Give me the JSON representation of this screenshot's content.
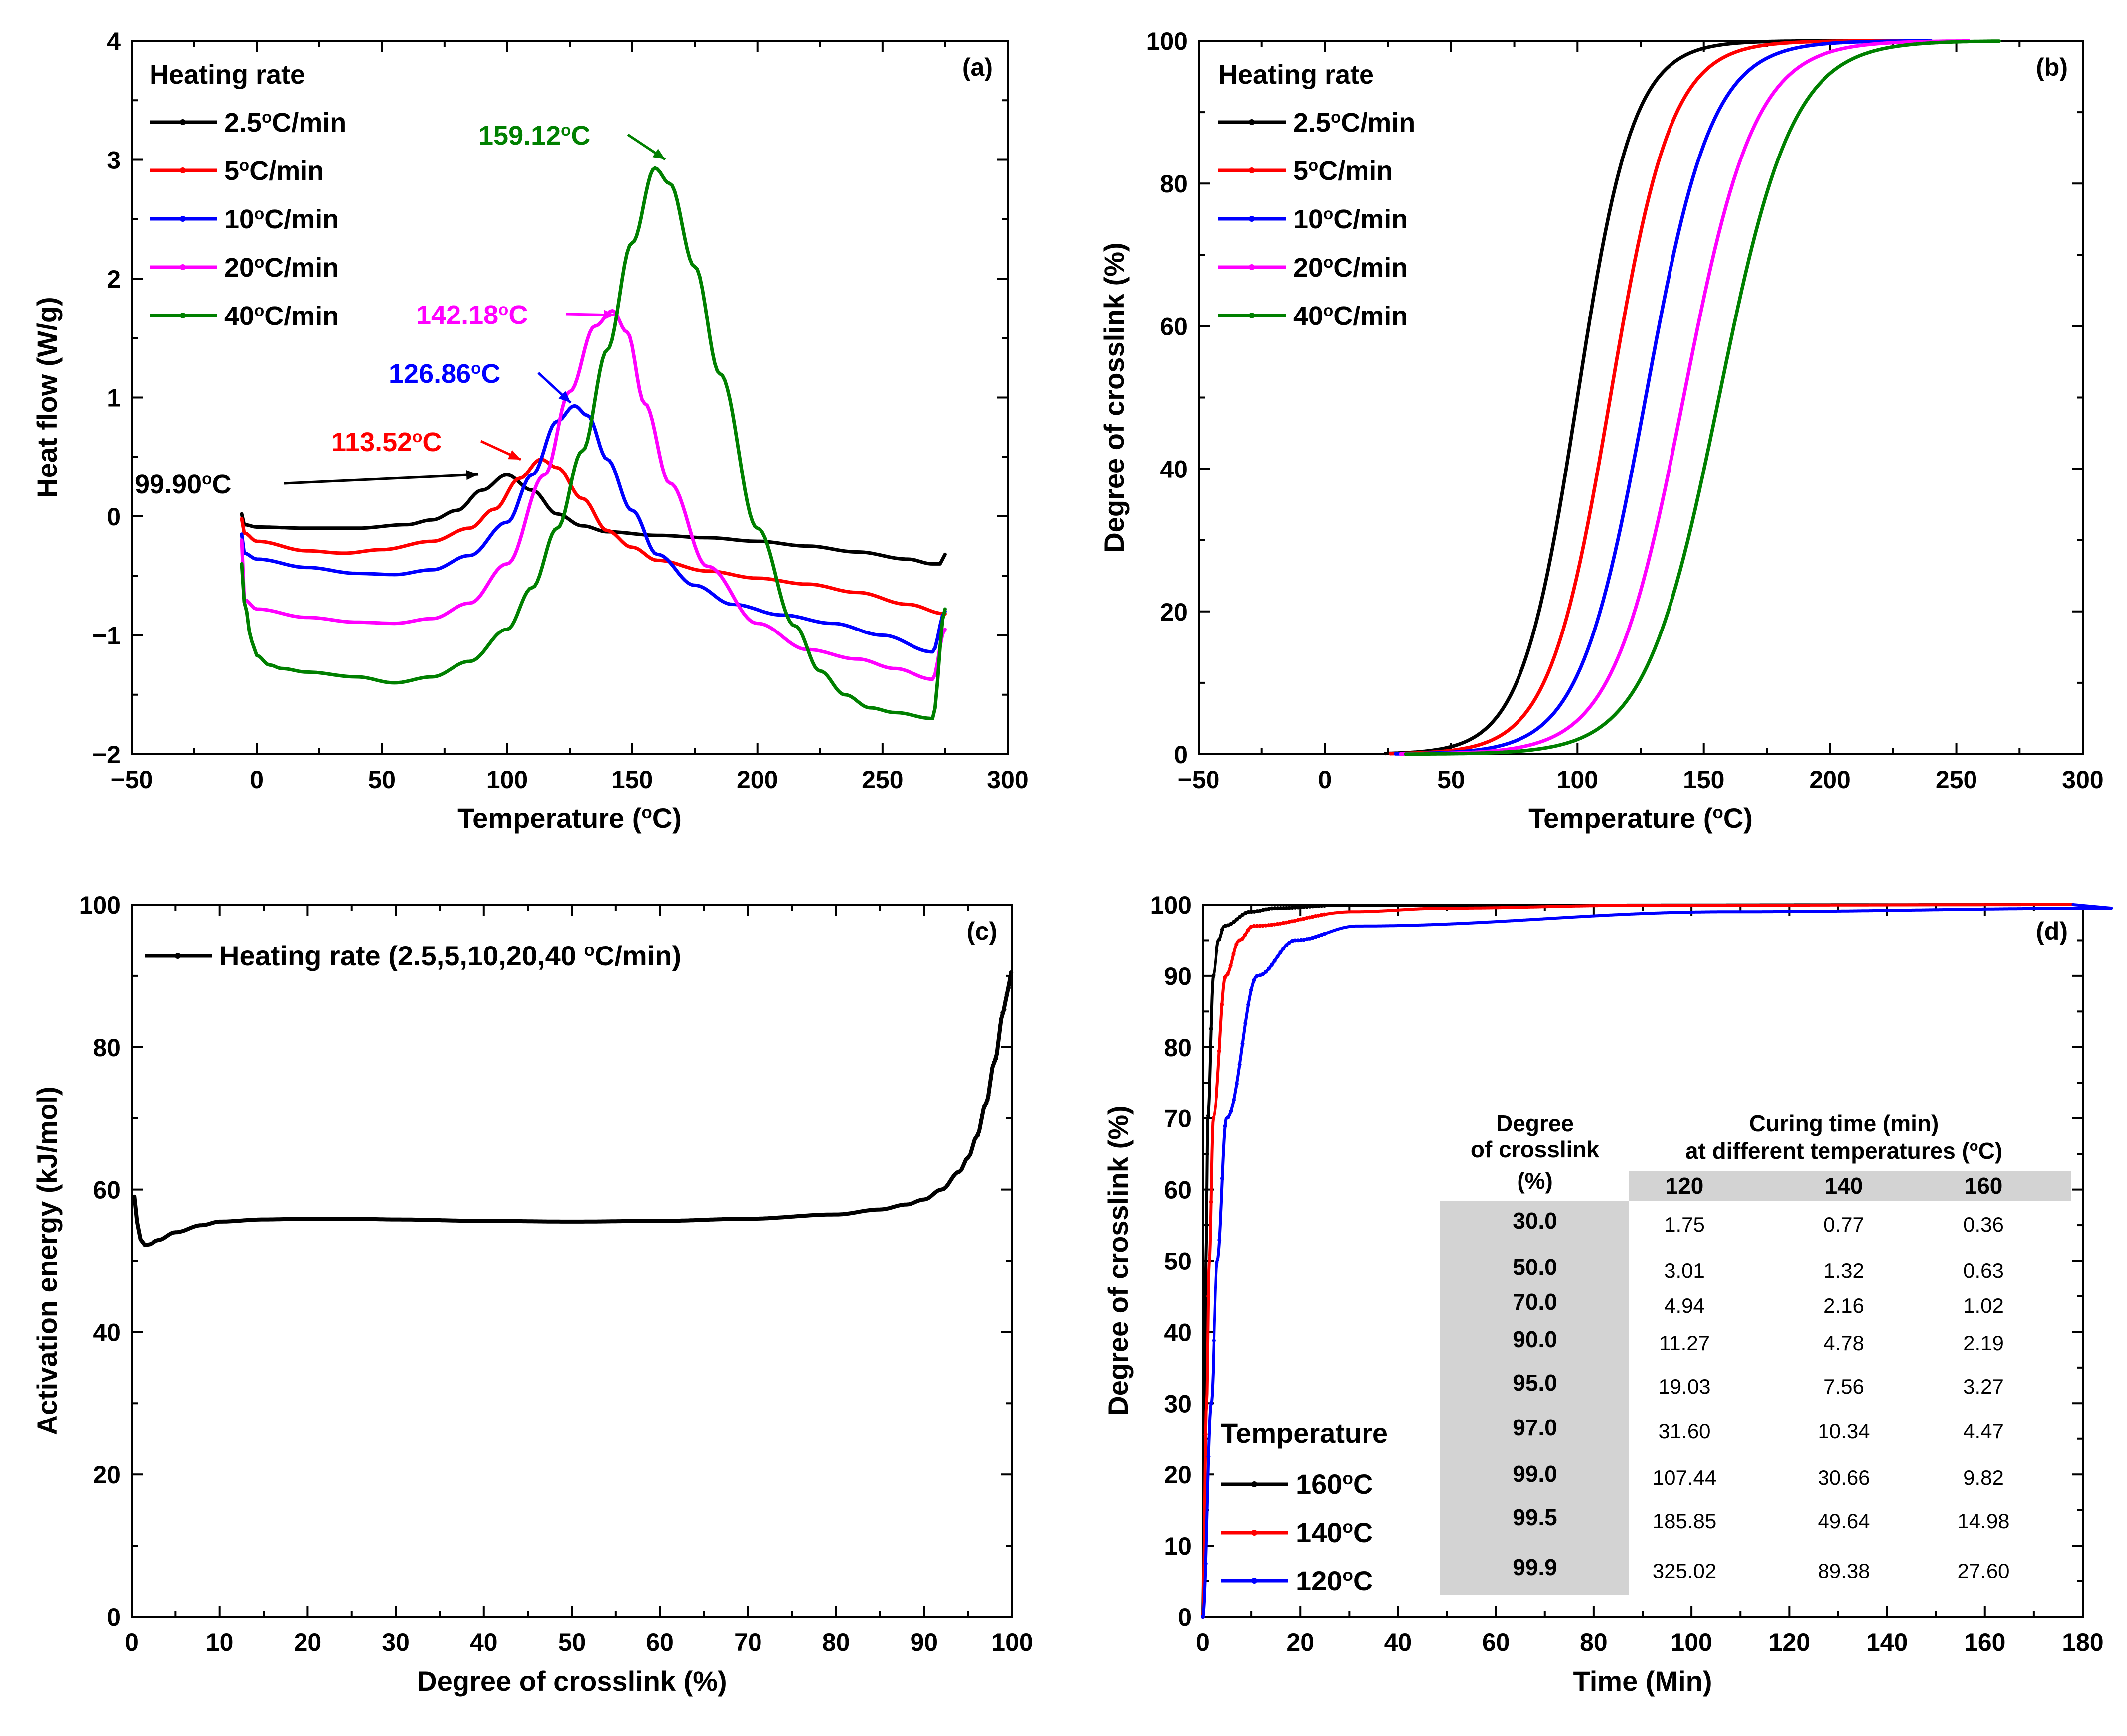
{
  "chart_data": [
    {
      "id": "a",
      "type": "line",
      "panel_label": "(a)",
      "xlabel": "Temperature (°C)",
      "ylabel": "Heat flow (W/g)",
      "xlim": [
        -50,
        300
      ],
      "ylim": [
        -2,
        4
      ],
      "xticks": [
        -50,
        0,
        50,
        100,
        150,
        200,
        250,
        300
      ],
      "yticks": [
        -2,
        -1,
        0,
        1,
        2,
        3,
        4
      ],
      "legend_title": "Heating rate",
      "legend_position": "top-left",
      "series": [
        {
          "name": "2.5°C/min",
          "color": "#000000",
          "x": [
            -6,
            -5,
            0,
            20,
            40,
            60,
            70,
            80,
            90,
            99.9,
            110,
            120,
            130,
            140,
            160,
            180,
            200,
            220,
            240,
            260,
            270,
            273,
            275
          ],
          "y": [
            0.02,
            -0.07,
            -0.09,
            -0.1,
            -0.1,
            -0.07,
            -0.03,
            0.05,
            0.22,
            0.35,
            0.22,
            0.02,
            -0.08,
            -0.13,
            -0.16,
            -0.18,
            -0.21,
            -0.25,
            -0.3,
            -0.36,
            -0.4,
            -0.4,
            -0.32
          ]
        },
        {
          "name": "5°C/min",
          "color": "#ff0000",
          "x": [
            -6,
            -5,
            0,
            20,
            35,
            50,
            70,
            85,
            95,
            105,
            113.5,
            120,
            130,
            140,
            150,
            160,
            180,
            200,
            220,
            240,
            260,
            275
          ],
          "y": [
            -0.02,
            -0.14,
            -0.21,
            -0.29,
            -0.31,
            -0.28,
            -0.21,
            -0.1,
            0.06,
            0.32,
            0.48,
            0.41,
            0.15,
            -0.12,
            -0.26,
            -0.37,
            -0.46,
            -0.52,
            -0.57,
            -0.64,
            -0.74,
            -0.82
          ]
        },
        {
          "name": "10°C/min",
          "color": "#0000ff",
          "x": [
            -6,
            -5,
            0,
            20,
            40,
            55,
            70,
            85,
            100,
            110,
            120,
            126.9,
            132,
            140,
            150,
            160,
            175,
            190,
            210,
            230,
            250,
            270,
            275
          ],
          "y": [
            -0.15,
            -0.31,
            -0.36,
            -0.43,
            -0.48,
            -0.49,
            -0.45,
            -0.33,
            -0.05,
            0.35,
            0.8,
            0.93,
            0.85,
            0.48,
            0.05,
            -0.32,
            -0.58,
            -0.74,
            -0.83,
            -0.9,
            -1.0,
            -1.14,
            -0.8
          ]
        },
        {
          "name": "20°C/min",
          "color": "#ff00ff",
          "x": [
            -6,
            -5,
            0,
            20,
            40,
            55,
            70,
            85,
            100,
            115,
            125,
            135,
            142.2,
            148,
            155,
            165,
            180,
            200,
            220,
            240,
            255,
            270,
            275
          ],
          "y": [
            -0.2,
            -0.7,
            -0.78,
            -0.85,
            -0.89,
            -0.9,
            -0.86,
            -0.73,
            -0.4,
            0.35,
            1.05,
            1.6,
            1.73,
            1.55,
            0.95,
            0.28,
            -0.42,
            -0.9,
            -1.12,
            -1.2,
            -1.28,
            -1.37,
            -0.95
          ]
        },
        {
          "name": "40°C/min",
          "color": "#008000",
          "x": [
            -6,
            -5,
            -2,
            0,
            5,
            10,
            20,
            40,
            55,
            70,
            85,
            100,
            110,
            120,
            130,
            140,
            150,
            159.1,
            165,
            175,
            185,
            200,
            215,
            225,
            235,
            245,
            255,
            270,
            275
          ],
          "y": [
            -0.4,
            -0.72,
            -1.05,
            -1.17,
            -1.25,
            -1.28,
            -1.31,
            -1.35,
            -1.4,
            -1.35,
            -1.22,
            -0.95,
            -0.6,
            -0.1,
            0.55,
            1.4,
            2.3,
            2.93,
            2.8,
            2.1,
            1.2,
            -0.1,
            -0.92,
            -1.3,
            -1.5,
            -1.61,
            -1.65,
            -1.7,
            -0.78
          ]
        }
      ],
      "annotations": [
        {
          "text": "99.90°C",
          "x": 99.9,
          "y": 0.35,
          "color": "#000000"
        },
        {
          "text": "113.52°C",
          "x": 113.52,
          "y": 0.48,
          "color": "#ff0000"
        },
        {
          "text": "126.86°C",
          "x": 126.86,
          "y": 0.93,
          "color": "#0000ff"
        },
        {
          "text": "142.18°C",
          "x": 142.18,
          "y": 1.73,
          "color": "#ff00ff"
        },
        {
          "text": "159.12°C",
          "x": 159.12,
          "y": 2.93,
          "color": "#008000"
        }
      ]
    },
    {
      "id": "b",
      "type": "line",
      "panel_label": "(b)",
      "xlabel": "Temperature (°C)",
      "ylabel": "Degree of crosslink (%)",
      "xlim": [
        -50,
        300
      ],
      "ylim": [
        0,
        100
      ],
      "xticks": [
        -50,
        0,
        50,
        100,
        150,
        200,
        250,
        300
      ],
      "yticks": [
        0,
        20,
        40,
        60,
        80,
        100
      ],
      "legend_title": "Heating rate",
      "legend_position": "top-left",
      "series": [
        {
          "name": "2.5°C/min",
          "color": "#000000",
          "x_start": 24,
          "x_end": 210,
          "T50": 100,
          "width": 11
        },
        {
          "name": "5°C/min",
          "color": "#ff0000",
          "x_start": 26,
          "x_end": 230,
          "T50": 113,
          "width": 12
        },
        {
          "name": "10°C/min",
          "color": "#0000ff",
          "x_start": 28,
          "x_end": 240,
          "T50": 127,
          "width": 13
        },
        {
          "name": "20°C/min",
          "color": "#ff00ff",
          "x_start": 30,
          "x_end": 255,
          "T50": 142,
          "width": 14
        },
        {
          "name": "40°C/min",
          "color": "#008000",
          "x_start": 32,
          "x_end": 267,
          "T50": 156,
          "width": 14.5
        }
      ]
    },
    {
      "id": "c",
      "type": "line",
      "panel_label": "(c)",
      "xlabel": "Degree of crosslink (%)",
      "ylabel": "Activation energy (kJ/mol)",
      "xlim": [
        0,
        100
      ],
      "ylim": [
        0,
        100
      ],
      "xticks": [
        0,
        10,
        20,
        30,
        40,
        50,
        60,
        70,
        80,
        90,
        100
      ],
      "yticks": [
        0,
        20,
        40,
        60,
        80,
        100
      ],
      "legend_position": "top-left",
      "series": [
        {
          "name": "Heating rate (2.5,5,10,20,40 °C/min)",
          "color": "#000000",
          "x": [
            0.3,
            0.6,
            1,
            1.5,
            2,
            3,
            5,
            8,
            10,
            15,
            20,
            25,
            30,
            40,
            50,
            60,
            70,
            80,
            85,
            88,
            90,
            92,
            94,
            95,
            96,
            97,
            98,
            99,
            99.5,
            99.9
          ],
          "y": [
            59.0,
            55.5,
            53.0,
            52.2,
            52.3,
            52.9,
            54.0,
            55.0,
            55.5,
            55.8,
            55.9,
            55.9,
            55.8,
            55.6,
            55.5,
            55.6,
            55.9,
            56.5,
            57.2,
            57.9,
            58.6,
            60.0,
            62.5,
            64.5,
            67.5,
            72.0,
            78.0,
            85.0,
            88.0,
            90.5
          ]
        }
      ]
    },
    {
      "id": "d",
      "type": "line",
      "panel_label": "(d)",
      "xlabel": "Time (Min)",
      "ylabel": "Degree of crosslink (%)",
      "xlim": [
        0,
        180
      ],
      "ylim": [
        0,
        100
      ],
      "xticks": [
        0,
        20,
        40,
        60,
        80,
        100,
        120,
        140,
        160,
        180
      ],
      "yticks": [
        0,
        10,
        20,
        30,
        40,
        50,
        60,
        70,
        80,
        90,
        100
      ],
      "legend_title": "Temperature",
      "legend_position": "bottom-left",
      "series": [
        {
          "name": "160°C",
          "color": "#000000",
          "x_end": 178,
          "x": [
            0,
            0.36,
            0.63,
            1.02,
            2.19,
            3.27,
            4.47,
            9.82,
            14.98,
            27.6
          ],
          "y": [
            0,
            30,
            50,
            70,
            90,
            95,
            97,
            99,
            99.5,
            99.9
          ]
        },
        {
          "name": "140°C",
          "color": "#ff0000",
          "x_end": 178,
          "x": [
            0,
            0.77,
            1.32,
            2.16,
            4.78,
            7.56,
            10.34,
            30.66,
            49.64,
            89.38
          ],
          "y": [
            0,
            30,
            50,
            70,
            90,
            95,
            97,
            99,
            99.5,
            99.9
          ]
        },
        {
          "name": "120°C",
          "color": "#0000ff",
          "x_end": 178,
          "x": [
            0,
            1.75,
            3.01,
            4.94,
            11.27,
            19.03,
            31.6,
            107.44,
            185.85
          ],
          "y": [
            0,
            30,
            50,
            70,
            90,
            95,
            97,
            99,
            99.5
          ]
        }
      ],
      "table": {
        "header_col1_line1": "Degree",
        "header_col1_line2": "of crosslink",
        "header_col1_line3": "(%)",
        "header_group_line1": "Curing time (min)",
        "header_group_line2": "at different temperatures (°C)",
        "temperatures": [
          "120",
          "140",
          "160"
        ],
        "rows": [
          [
            "30.0",
            "1.75",
            "0.77",
            "0.36"
          ],
          [
            "50.0",
            "3.01",
            "1.32",
            "0.63"
          ],
          [
            "70.0",
            "4.94",
            "2.16",
            "1.02"
          ],
          [
            "90.0",
            "11.27",
            "4.78",
            "2.19"
          ],
          [
            "95.0",
            "19.03",
            "7.56",
            "3.27"
          ],
          [
            "97.0",
            "31.60",
            "10.34",
            "4.47"
          ],
          [
            "99.0",
            "107.44",
            "30.66",
            "9.82"
          ],
          [
            "99.5",
            "185.85",
            "49.64",
            "14.98"
          ],
          [
            "99.9",
            "325.02",
            "89.38",
            "27.60"
          ]
        ]
      }
    }
  ]
}
